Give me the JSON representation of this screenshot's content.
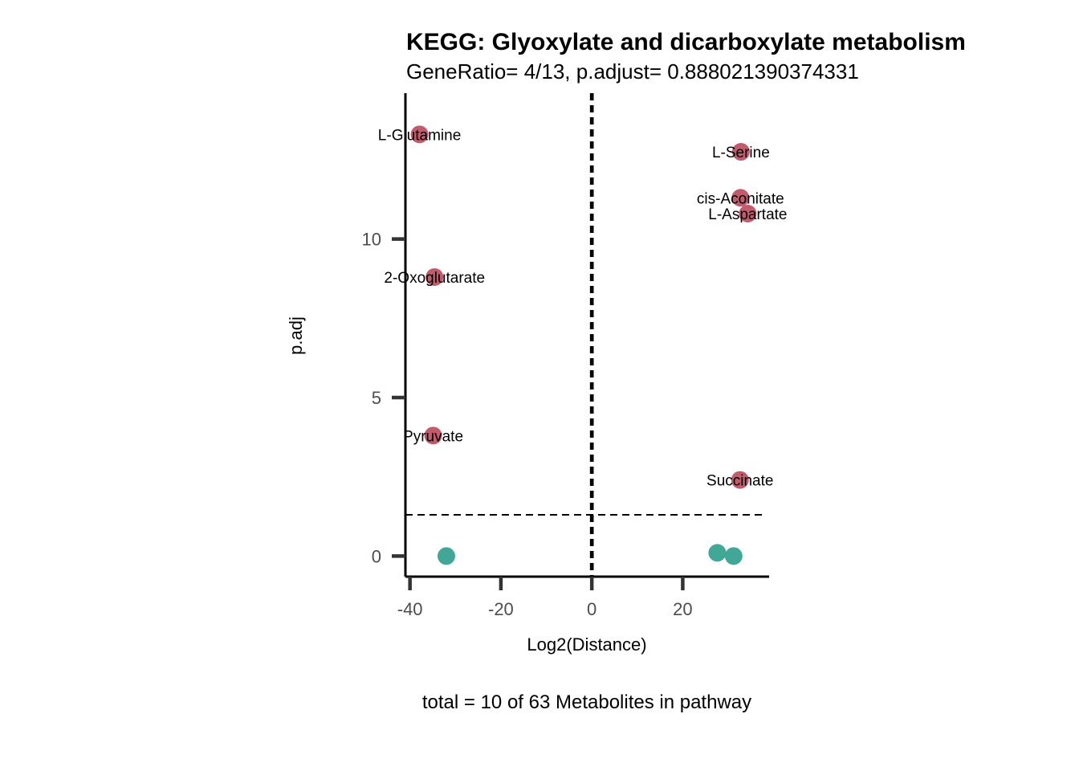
{
  "chart_data": {
    "type": "scatter",
    "title": "KEGG: Glyoxylate and dicarboxylate metabolism",
    "subtitle": "GeneRatio= 4/13, p.adjust= 0.888021390374331",
    "xlabel": "Log2(Distance)",
    "ylabel": "p.adj",
    "caption": "total = 10 of 63 Metabolites in pathway",
    "xlim": [
      -41,
      39
    ],
    "ylim": [
      -0.65,
      14.6
    ],
    "xticks": [
      -40,
      -20,
      0,
      20
    ],
    "xtick_labels": [
      "-40",
      "-20",
      "0",
      "20"
    ],
    "yticks": [
      0,
      5,
      10
    ],
    "ytick_labels": [
      "0",
      "5",
      "10"
    ],
    "vlines": [
      -0.2,
      0.2
    ],
    "hline": 1.3,
    "colors": {
      "significant": "#C25B6B",
      "not_significant": "#41A898",
      "axis": "#000000",
      "ticks": "#333333"
    },
    "points": [
      {
        "name": "L-Glutamine",
        "x": -37.9,
        "y": 13.3,
        "significant": true
      },
      {
        "name": "L-Serine",
        "x": 32.8,
        "y": 12.75,
        "significant": true
      },
      {
        "name": "cis-Aconitate",
        "x": 32.7,
        "y": 11.3,
        "significant": true
      },
      {
        "name": "L-Aspartate",
        "x": 34.3,
        "y": 10.8,
        "significant": true
      },
      {
        "name": "2-Oxoglutarate",
        "x": -34.6,
        "y": 8.8,
        "significant": true
      },
      {
        "name": "Pyruvate",
        "x": -34.9,
        "y": 3.8,
        "significant": true
      },
      {
        "name": "Succinate",
        "x": 32.6,
        "y": 2.4,
        "significant": true
      },
      {
        "name": "",
        "x": -32.0,
        "y": 0.0,
        "significant": false
      },
      {
        "name": "",
        "x": 27.6,
        "y": 0.1,
        "significant": false
      },
      {
        "name": "",
        "x": 31.2,
        "y": 0.0,
        "significant": false
      }
    ]
  }
}
